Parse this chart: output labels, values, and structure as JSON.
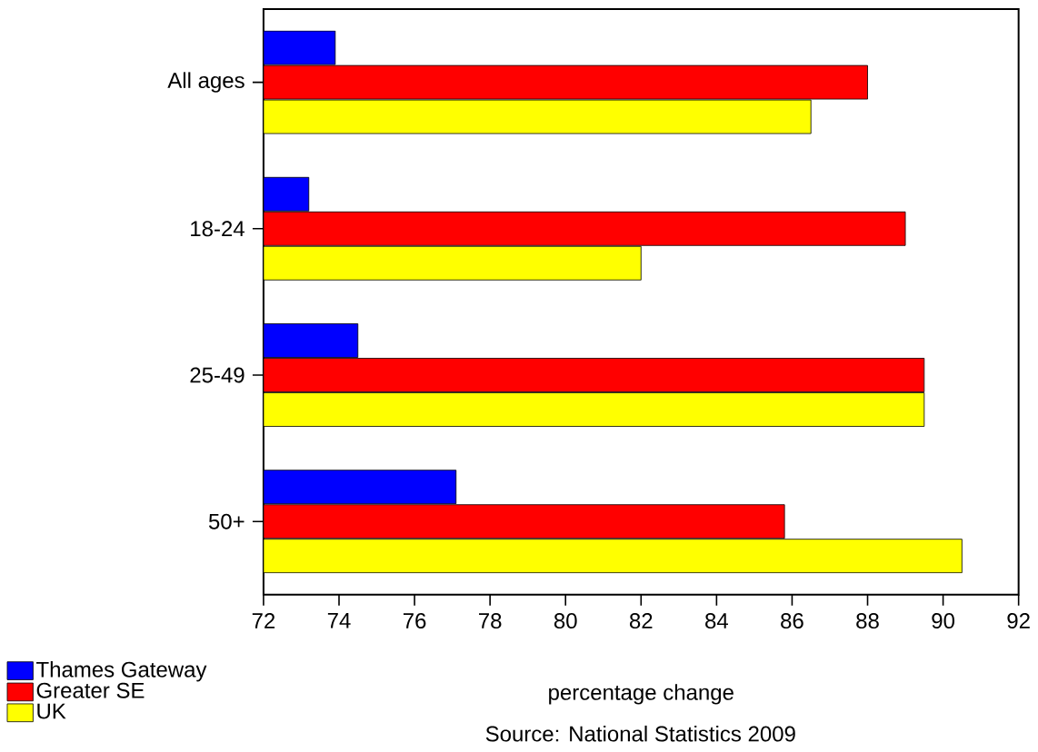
{
  "chart_data": {
    "type": "bar",
    "orientation": "horizontal",
    "categories": [
      "All ages",
      "18-24",
      "25-49",
      "50+"
    ],
    "series": [
      {
        "name": "Thames Gateway",
        "color": "#0000ff",
        "values": [
          73.9,
          73.2,
          74.5,
          77.1
        ]
      },
      {
        "name": "Greater SE",
        "color": "#ff0000",
        "values": [
          88.0,
          89.0,
          89.5,
          85.8
        ]
      },
      {
        "name": "UK",
        "color": "#ffff00",
        "values": [
          86.5,
          82.0,
          89.5,
          90.5
        ]
      }
    ],
    "xlim": [
      72,
      92
    ],
    "xticks": [
      72,
      74,
      76,
      78,
      80,
      82,
      84,
      86,
      88,
      90,
      92
    ],
    "xlabel": "percentage change",
    "legend": "bottom left",
    "annotations": [
      "Source: National Statistics 2009"
    ]
  }
}
